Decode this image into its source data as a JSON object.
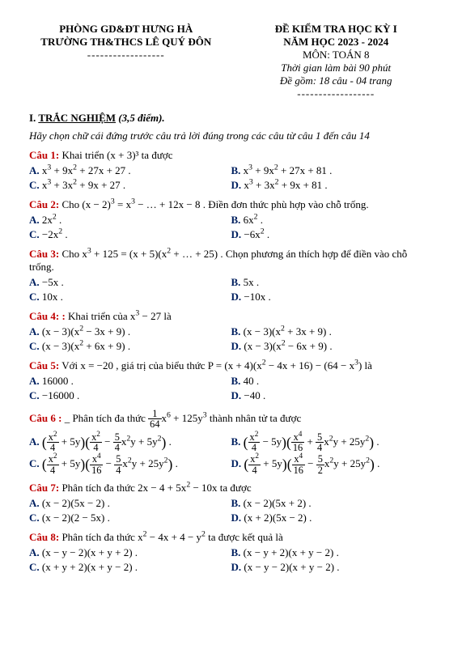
{
  "header": {
    "left1": "PHÒNG GD&ĐT HƯNG HÀ",
    "left2": "TRƯỜNG TH&THCS LÊ QUÝ ĐÔN",
    "left_dash": "------------------",
    "right1": "ĐỀ KIỂM TRA HỌC KỲ I",
    "right2": "NĂM HỌC 2023 - 2024",
    "right3": "MÔN: TOÁN 8",
    "right4": "Thời gian làm bài 90 phút",
    "right5": "Đề gồm: 18 câu - 04 trang",
    "right_dash": "------------------"
  },
  "section1": {
    "label": "I. ",
    "title": "TRẮC NGHIỆM",
    "points": " (3,5 điểm)."
  },
  "instruction": "Hãy chọn chữ cái đứng trước câu trả lời đúng trong các câu từ câu 1 đến câu 14",
  "q1": {
    "label": "Câu 1:",
    "text": " Khai triển (x + 3)³ ta được",
    "a": "A. x³ + 9x² + 27x + 27 .",
    "b": "B. x³ + 9x² + 27x + 81 .",
    "c": "C. x³ + 3x² + 9x + 27 .",
    "d": "D. x³ + 3x² + 9x + 81 ."
  },
  "q2": {
    "label": "Câu 2:",
    "text": " Cho (x − 2)³ = x³ − … + 12x − 8 . Điền đơn thức phù hợp vào chỗ trống.",
    "a": "A. 2x² .",
    "b": "B. 6x² .",
    "c": "C. −2x² .",
    "d": "D. −6x² ."
  },
  "q3": {
    "label": "Câu 3:",
    "text": " Cho x³ + 125 = (x + 5)(x² + … + 25) . Chọn phương án thích hợp để điền vào chỗ trống.",
    "a": "A. −5x .",
    "b": "B. 5x .",
    "c": "C. 10x .",
    "d": "D. −10x ."
  },
  "q4": {
    "label": "Câu 4: :",
    "text": " Khai triển của x³ − 27 là",
    "a": "A. (x − 3)(x² − 3x + 9) .",
    "b": "B. (x − 3)(x² + 3x + 9) .",
    "c": "C. (x − 3)(x² + 6x + 9) .",
    "d": "D. (x − 3)(x² − 6x + 9) ."
  },
  "q5": {
    "label": "Câu 5:",
    "text": " Với x = −20 , giá trị của biểu thức P = (x + 4)(x² − 4x + 16) − (64 − x³) là",
    "a": "A. 16000 .",
    "b": "B. 40 .",
    "c": "C. −16000 .",
    "d": "D. −40 ."
  },
  "q6": {
    "label": "Câu 6 :",
    "pre": " _ Phân tích đa thức ",
    "post": "x⁶ + 125y³ thành nhân tử ta được"
  },
  "q7": {
    "label": "Câu 7:",
    "text": " Phân tích đa thức 2x − 4 + 5x² − 10x ta được",
    "a": "A. (x − 2)(5x − 2) .",
    "b": "B. (x − 2)(5x + 2) .",
    "c": "C. (x − 2)(2 − 5x) .",
    "d": "D. (x + 2)(5x − 2) ."
  },
  "q8": {
    "label": "Câu 8:",
    "text": " Phân tích đa thức x² − 4x + 4 − y² ta được kết quả là",
    "a": "A. (x − y − 2)(x + y + 2) .",
    "b": "B. (x − y + 2)(x + y − 2) .",
    "c": "C. (x + y + 2)(x + y − 2) .",
    "d": "D. (x − y − 2)(x + y − 2) ."
  }
}
